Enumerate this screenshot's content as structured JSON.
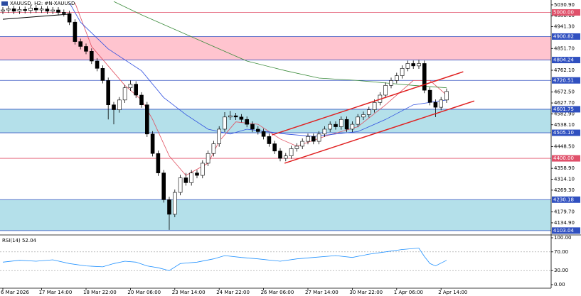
{
  "chart_data": {
    "type": "candlestick",
    "title": "XAUUSD, H2:  #N-XAUUSD",
    "categories": [
      "6 Mar 2026",
      null,
      null,
      null,
      null,
      null,
      null,
      "17 Mar 14:00",
      null,
      null,
      null,
      null,
      null,
      null,
      null,
      "18 Mar 22:00",
      null,
      null,
      null,
      null,
      null,
      null,
      null,
      "20 Mar 06:00",
      null,
      null,
      null,
      null,
      null,
      null,
      null,
      "23 Mar 14:00",
      null,
      null,
      null,
      null,
      null,
      null,
      null,
      "24 Mar 22:00",
      null,
      null,
      null,
      null,
      null,
      null,
      null,
      "26 Mar 06:00",
      null,
      null,
      null,
      null,
      null,
      null,
      null,
      "27 Mar 14:00",
      null,
      null,
      null,
      null,
      null,
      null,
      null,
      "30 Mar 22:00",
      null,
      null,
      null,
      null,
      null,
      null,
      null,
      "1 Apr 06:00",
      null,
      null,
      null,
      null,
      null,
      null,
      null,
      "2 Apr 14:00",
      null
    ],
    "open": [
      5005,
      5010,
      5015,
      5005,
      5012,
      5008,
      5018,
      5010,
      5014,
      5005,
      5010,
      5000,
      4995,
      4960,
      4880,
      4860,
      4840,
      4800,
      4770,
      4720,
      4620,
      4600,
      4640,
      4690,
      4705,
      4660,
      4620,
      4500,
      4420,
      4340,
      4230,
      4170,
      4260,
      4320,
      4300,
      4340,
      4330,
      4380,
      4420,
      4460,
      4520,
      4570,
      4575,
      4570,
      4560,
      4540,
      4520,
      4510,
      4490,
      4460,
      4430,
      4400,
      4410,
      4440,
      4450,
      4470,
      4490,
      4470,
      4500,
      4520,
      4540,
      4530,
      4560,
      4520,
      4540,
      4570,
      4580,
      4600,
      4630,
      4660,
      4700,
      4720,
      4740,
      4770,
      4790,
      4780,
      4790,
      4680,
      4630,
      4610,
      4640
    ],
    "high": [
      5022,
      5027,
      5027,
      5024,
      5024,
      5030,
      5030,
      5026,
      5026,
      5022,
      5022,
      5012,
      5007,
      4972,
      4892,
      4872,
      4852,
      4812,
      4782,
      4732,
      4632,
      4652,
      4702,
      4720,
      4717,
      4672,
      4632,
      4512,
      4432,
      4352,
      4242,
      4272,
      4332,
      4340,
      4352,
      4352,
      4392,
      4432,
      4472,
      4532,
      4590,
      4595,
      4587,
      4582,
      4572,
      4552,
      4532,
      4522,
      4502,
      4472,
      4442,
      4422,
      4452,
      4462,
      4482,
      4502,
      4502,
      4512,
      4532,
      4552,
      4552,
      4572,
      4572,
      4552,
      4582,
      4592,
      4612,
      4642,
      4672,
      4712,
      4732,
      4752,
      4782,
      4802,
      4802,
      4805,
      4802,
      4692,
      4642,
      4652,
      4687
    ],
    "low": [
      4993,
      4998,
      4993,
      4993,
      4996,
      4996,
      4998,
      4998,
      4993,
      4993,
      4988,
      4983,
      4948,
      4868,
      4848,
      4828,
      4788,
      4758,
      4708,
      4560,
      4540,
      4588,
      4628,
      4678,
      4648,
      4608,
      4488,
      4408,
      4328,
      4218,
      4106,
      4158,
      4248,
      4288,
      4288,
      4318,
      4318,
      4368,
      4408,
      4448,
      4508,
      4558,
      4558,
      4548,
      4528,
      4508,
      4498,
      4478,
      4448,
      4418,
      4388,
      4388,
      4398,
      4428,
      4438,
      4458,
      4458,
      4458,
      4488,
      4508,
      4518,
      4518,
      4508,
      4508,
      4528,
      4558,
      4568,
      4588,
      4618,
      4648,
      4688,
      4708,
      4728,
      4758,
      4768,
      4768,
      4668,
      4618,
      4570,
      4598,
      4628
    ],
    "close": [
      5010,
      5015,
      5005,
      5012,
      5008,
      5018,
      5010,
      5014,
      5005,
      5010,
      5000,
      4995,
      4960,
      4880,
      4860,
      4840,
      4800,
      4770,
      4720,
      4620,
      4600,
      4640,
      4690,
      4705,
      4660,
      4620,
      4500,
      4420,
      4340,
      4230,
      4170,
      4260,
      4320,
      4300,
      4340,
      4330,
      4380,
      4420,
      4460,
      4520,
      4570,
      4575,
      4570,
      4560,
      4540,
      4520,
      4510,
      4490,
      4460,
      4430,
      4400,
      4410,
      4440,
      4450,
      4470,
      4490,
      4470,
      4500,
      4520,
      4540,
      4530,
      4560,
      4520,
      4540,
      4570,
      4580,
      4600,
      4630,
      4660,
      4700,
      4720,
      4740,
      4770,
      4790,
      4780,
      4790,
      4680,
      4630,
      4610,
      4640,
      4675
    ],
    "up_color": "#ffffff",
    "down_color": "#000000",
    "ylim": [
      4088,
      5051
    ],
    "yticks": [
      {
        "value": 5030.9,
        "label": "5030.90"
      },
      {
        "value": 4986.1,
        "label": "4986.10"
      },
      {
        "value": 4941.3,
        "label": "4941.30"
      },
      {
        "value": 4851.7,
        "label": "4851.70"
      },
      {
        "value": 4762.1,
        "label": "4762.10"
      },
      {
        "value": 4672.5,
        "label": "4672.50"
      },
      {
        "value": 4627.7,
        "label": "4627.70"
      },
      {
        "value": 4582.9,
        "label": "4582.90"
      },
      {
        "value": 4538.1,
        "label": "4538.10"
      },
      {
        "value": 4448.5,
        "label": "4448.50"
      },
      {
        "value": 4358.9,
        "label": "4358.90"
      },
      {
        "value": 4314.1,
        "label": "4314.10"
      },
      {
        "value": 4269.3,
        "label": "4269.30"
      },
      {
        "value": 4179.7,
        "label": "4179.70"
      },
      {
        "value": 4134.9,
        "label": "4134.90"
      }
    ],
    "zones": [
      {
        "from": 4804.24,
        "to": 4900.82,
        "color": "#ffc4cf"
      },
      {
        "from": 4505.1,
        "to": 4601.75,
        "color": "#b4e0ea"
      },
      {
        "from": 4103.04,
        "to": 4230.18,
        "color": "#b4e0ea"
      }
    ],
    "levels": [
      {
        "value": 5000,
        "label": "5000.00",
        "color": "#e0506a"
      },
      {
        "value": 4900.82,
        "label": "4900.82",
        "color": "#3050c0"
      },
      {
        "value": 4804.24,
        "label": "4804.24",
        "color": "#3050c0"
      },
      {
        "value": 4720.51,
        "label": "4720.51",
        "color": "#3050c0"
      },
      {
        "value": 4601.75,
        "label": "4601.75",
        "color": "#3050c0"
      },
      {
        "value": 4505.1,
        "label": "4505.10",
        "color": "#3050c0"
      },
      {
        "value": 4400,
        "label": "4400.00",
        "color": "#e0506a"
      },
      {
        "value": 4230.18,
        "label": "4230.18",
        "color": "#3050c0"
      },
      {
        "value": 4103.04,
        "label": "4103.04",
        "color": "#3050c0"
      }
    ],
    "series": [
      {
        "color": "#e05060",
        "x": [
          13,
          16,
          22,
          25,
          27,
          30,
          33,
          37,
          39,
          42,
          46,
          50,
          53,
          58,
          64,
          69,
          74,
          77,
          80
        ],
        "values": [
          5040,
          4860,
          4700,
          4640,
          4560,
          4410,
          4330,
          4380,
          4470,
          4550,
          4540,
          4480,
          4450,
          4490,
          4530,
          4620,
          4720,
          4720,
          4660
        ]
      },
      {
        "color": "#3050e0",
        "x": [
          12,
          14,
          19,
          25,
          29,
          33,
          37,
          41,
          44,
          51,
          56,
          64,
          69,
          74,
          80
        ],
        "values": [
          5040,
          4960,
          4850,
          4760,
          4650,
          4580,
          4520,
          4500,
          4520,
          4500,
          4490,
          4510,
          4560,
          4620,
          4640
        ]
      },
      {
        "color": "#3c8c3c",
        "x": [
          20,
          25,
          32,
          38,
          44,
          51,
          57,
          64,
          69,
          74,
          80
        ],
        "values": [
          5045,
          4990,
          4920,
          4860,
          4800,
          4760,
          4730,
          4720,
          4710,
          4700,
          4690
        ]
      }
    ],
    "trendlines": [
      {
        "color": "#e02020",
        "x": [
          48.5,
          83
        ],
        "values": [
          4496,
          4756
        ]
      },
      {
        "color": "#e02020",
        "x": [
          50.8,
          85
        ],
        "values": [
          4380,
          4636
        ]
      },
      {
        "color": "#000000",
        "x": [
          0,
          12
        ],
        "values": [
          4972,
          4993
        ]
      }
    ],
    "rsi": {
      "label": "RSI(14) 52.04",
      "color": "#1e90ff",
      "ylim": [
        0,
        100
      ],
      "yticks": [
        {
          "value": 100,
          "label": "100.00"
        },
        {
          "value": 70,
          "label": "70.00"
        },
        {
          "value": 30,
          "label": "30.00"
        },
        {
          "value": 0,
          "label": "0.00"
        }
      ],
      "x": [
        0,
        3,
        6,
        9,
        12,
        15,
        18,
        20,
        22,
        24,
        26,
        28,
        30,
        32,
        35,
        38,
        40,
        43,
        46,
        50,
        53,
        56,
        60,
        63,
        66,
        69,
        72,
        75,
        76,
        77,
        78,
        80
      ],
      "values": [
        48,
        52,
        50,
        53,
        45,
        40,
        38,
        45,
        50,
        48,
        40,
        36,
        30,
        45,
        48,
        55,
        62,
        58,
        55,
        50,
        55,
        58,
        62,
        58,
        65,
        70,
        75,
        78,
        60,
        45,
        40,
        52
      ]
    }
  }
}
